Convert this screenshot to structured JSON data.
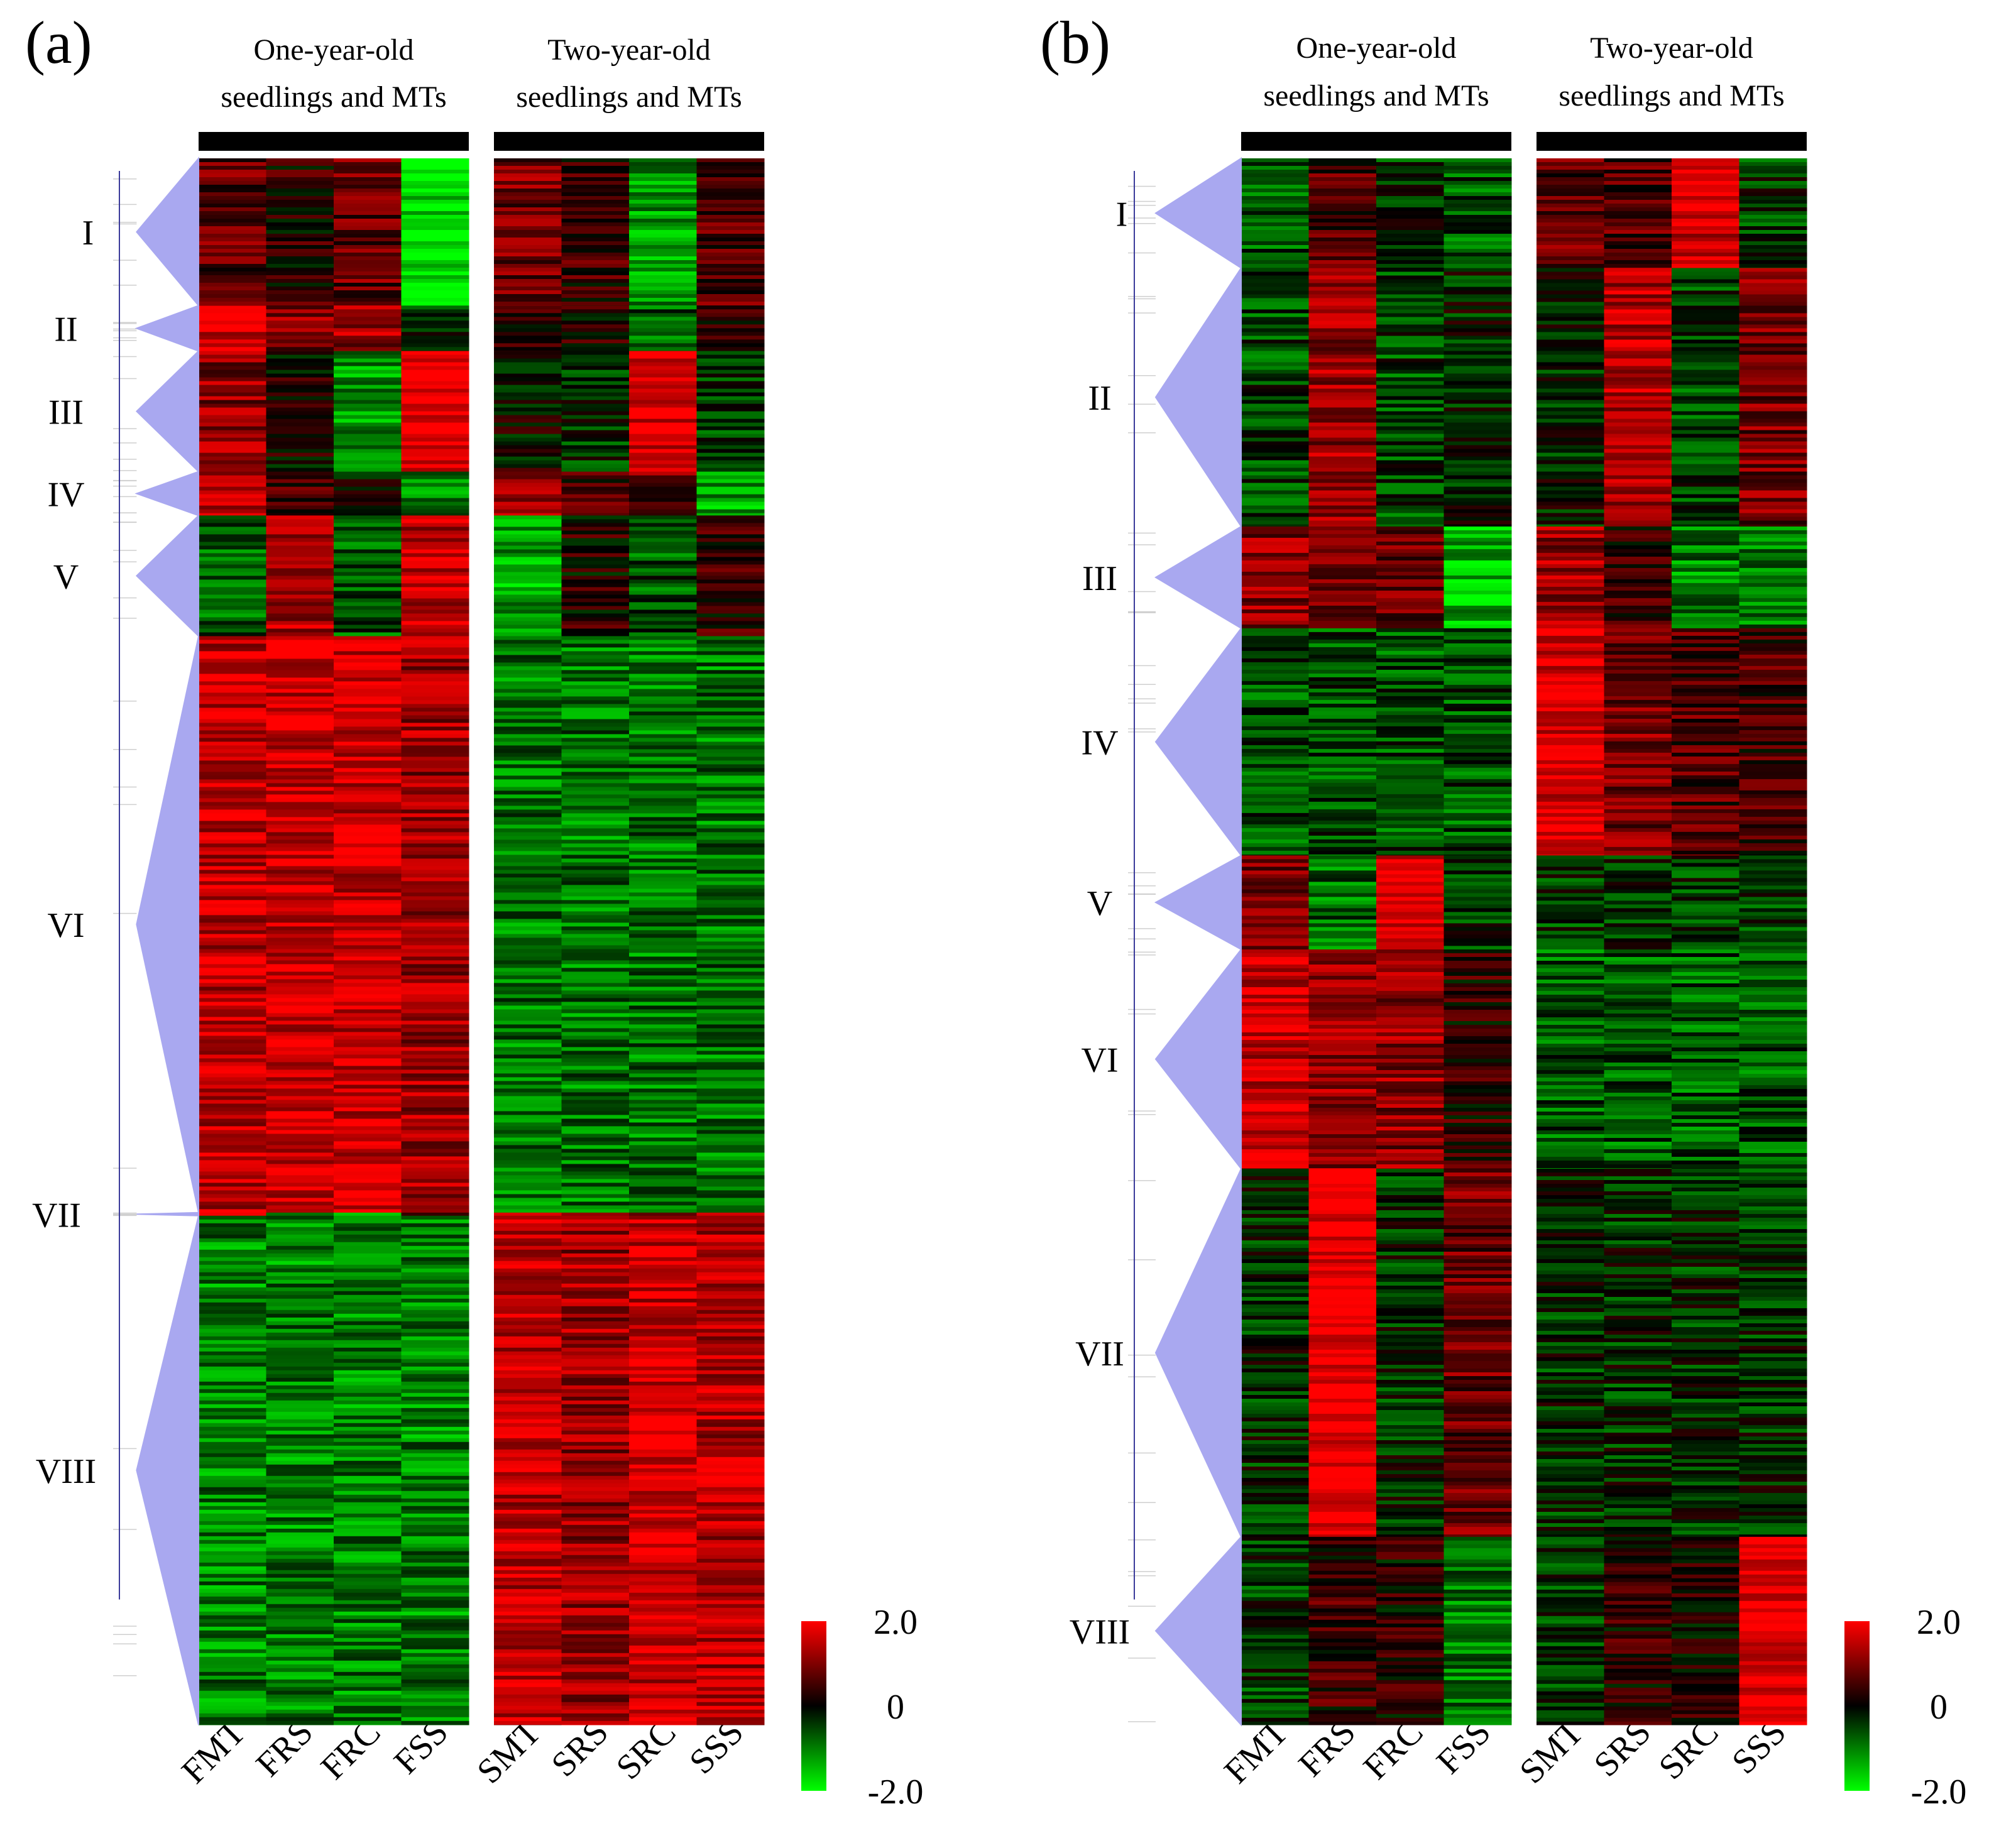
{
  "chart_data": [
    {
      "type": "heatmap",
      "panel_label": "(a)",
      "groups": [
        {
          "label_line1": "One-year-old",
          "label_line2": "seedlings and MTs",
          "samples": [
            "FMT",
            "FRS",
            "FRC",
            "FSS"
          ]
        },
        {
          "label_line1": "Two-year-old",
          "label_line2": "seedlings and MTs",
          "samples": [
            "SMT",
            "SRS",
            "SRC",
            "SSS"
          ]
        }
      ],
      "clusters": [
        {
          "label": "I",
          "start": 0.0,
          "end": 0.094
        },
        {
          "label": "II",
          "start": 0.094,
          "end": 0.123
        },
        {
          "label": "III",
          "start": 0.123,
          "end": 0.2
        },
        {
          "label": "IV",
          "start": 0.2,
          "end": 0.228
        },
        {
          "label": "V",
          "start": 0.228,
          "end": 0.305
        },
        {
          "label": "VI",
          "start": 0.305,
          "end": 0.673
        },
        {
          "label": "VII",
          "start": 0.673,
          "end": 0.675
        },
        {
          "label": "VIII",
          "start": 0.675,
          "end": 1.0
        }
      ],
      "cluster_means": [
        [
          0.7,
          0.3,
          0.8,
          -1.8,
          0.9,
          0.4,
          -1.2,
          0.6
        ],
        [
          1.6,
          1.0,
          1.2,
          -0.3,
          0.4,
          0.2,
          -0.7,
          0.4
        ],
        [
          1.1,
          0.1,
          -1.2,
          1.8,
          0.0,
          -0.3,
          1.8,
          -0.5
        ],
        [
          1.3,
          0.6,
          0.0,
          -1.0,
          1.2,
          0.5,
          0.8,
          -1.2
        ],
        [
          -0.8,
          1.4,
          -0.6,
          1.5,
          -1.3,
          0.2,
          -0.6,
          0.3
        ],
        [
          1.5,
          1.6,
          1.6,
          1.2,
          -0.9,
          -0.9,
          -0.9,
          -0.9
        ],
        [
          1.3,
          -0.2,
          -1.0,
          0.3,
          1.2,
          0.9,
          0.5,
          1.8
        ],
        [
          -1.0,
          -1.0,
          -1.0,
          -1.0,
          1.5,
          1.2,
          1.6,
          1.4
        ]
      ],
      "colorbar": {
        "max_label": "2.0",
        "mid_label": "0",
        "min_label": "-2.0",
        "min": -2.0,
        "max": 2.0,
        "colors": [
          "#00ff00",
          "#000000",
          "#ff0000"
        ]
      }
    },
    {
      "type": "heatmap",
      "panel_label": "(b)",
      "groups": [
        {
          "label_line1": "One-year-old",
          "label_line2": "seedlings and MTs",
          "samples": [
            "FMT",
            "FRS",
            "FRC",
            "FSS"
          ]
        },
        {
          "label_line1": "Two-year-old",
          "label_line2": "seedlings and MTs",
          "samples": [
            "SMT",
            "SRS",
            "SRC",
            "SSS"
          ]
        }
      ],
      "clusters": [
        {
          "label": "I",
          "start": 0.0,
          "end": 0.07
        },
        {
          "label": "II",
          "start": 0.07,
          "end": 0.235
        },
        {
          "label": "III",
          "start": 0.235,
          "end": 0.3
        },
        {
          "label": "IV",
          "start": 0.3,
          "end": 0.445
        },
        {
          "label": "V",
          "start": 0.445,
          "end": 0.505
        },
        {
          "label": "VI",
          "start": 0.505,
          "end": 0.645
        },
        {
          "label": "VII",
          "start": 0.645,
          "end": 0.88
        },
        {
          "label": "VIII",
          "start": 0.88,
          "end": 1.0
        }
      ],
      "cluster_means": [
        [
          -0.6,
          0.6,
          -0.4,
          -0.6,
          0.7,
          0.6,
          1.6,
          -0.4
        ],
        [
          -0.5,
          1.2,
          -0.5,
          -0.2,
          -0.2,
          1.4,
          -0.5,
          0.9
        ],
        [
          1.1,
          0.8,
          0.9,
          -1.4,
          1.2,
          0.4,
          -1.0,
          -1.0
        ],
        [
          -0.6,
          -0.6,
          -0.6,
          -0.6,
          1.7,
          0.9,
          0.6,
          0.5
        ],
        [
          0.8,
          -0.8,
          1.7,
          -0.4,
          -0.4,
          -0.4,
          -0.4,
          -0.4
        ],
        [
          1.6,
          1.1,
          1.1,
          0.3,
          -0.7,
          -0.7,
          -0.7,
          -0.7
        ],
        [
          -0.3,
          2.0,
          -0.3,
          0.8,
          -0.3,
          -0.3,
          -0.3,
          -0.3
        ],
        [
          -0.4,
          0.4,
          0.2,
          -0.9,
          -0.4,
          0.3,
          0.2,
          1.9
        ]
      ],
      "colorbar": {
        "max_label": "2.0",
        "mid_label": "0",
        "min_label": "-2.0",
        "min": -2.0,
        "max": 2.0,
        "colors": [
          "#00ff00",
          "#000000",
          "#ff0000"
        ]
      }
    }
  ]
}
